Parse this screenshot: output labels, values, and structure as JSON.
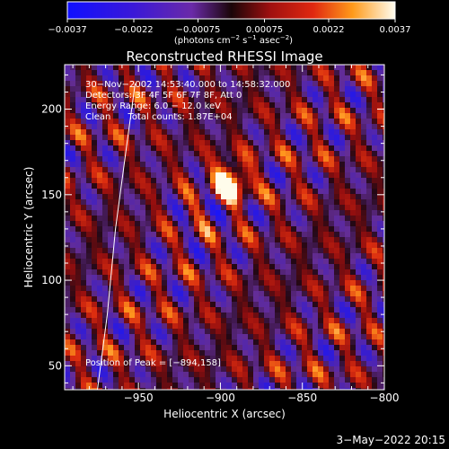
{
  "chart_data": {
    "type": "heatmap",
    "title": "Reconstructed RHESSI Image",
    "xlabel": "Heliocentric X (arcsec)",
    "ylabel": "Heliocentric Y (arcsec)",
    "xlim": [
      -995,
      -800
    ],
    "ylim": [
      36,
      226
    ],
    "x_ticks": [
      -950,
      -900,
      -850,
      -800
    ],
    "x_tick_labels": [
      "−950",
      "−900",
      "−850",
      "−800"
    ],
    "y_ticks": [
      50,
      100,
      150,
      200
    ],
    "y_tick_labels": [
      "50",
      "100",
      "150",
      "200"
    ],
    "colorbar": {
      "range": [
        -0.0037,
        0.0037
      ],
      "ticks": [
        -0.0037,
        -0.0022,
        -0.00075,
        0.00075,
        0.0022,
        0.0037
      ],
      "tick_labels": [
        "−0.0037",
        "−0.0022",
        "−0.00075",
        "0.00075",
        "0.0022",
        "0.0037"
      ],
      "units_parts": [
        "(photons cm",
        "−2",
        " s",
        "−1",
        " asec",
        "−2",
        ")"
      ]
    },
    "peak": {
      "x": -894,
      "y": 158,
      "value": 0.0037
    },
    "stripe_angle_deg": 63,
    "limb_curve": [
      [
        -975,
        36
      ],
      [
        -969,
        80
      ],
      [
        -964,
        130
      ],
      [
        -957,
        180
      ],
      [
        -952,
        215
      ]
    ],
    "annotations": [
      "30−Nov−2002 14:53:40.000 to 14:58:32.000",
      "Detectors: 3F 4F 5F 6F 7F 8F, Att 0",
      "Energy Range: 6.0 − 12.0 keV",
      "Clean      Total counts: 1.87E+04"
    ],
    "peak_label": "Position of Peak = [−894,158]"
  },
  "footer": {
    "date": "3−May−2022 20:15"
  }
}
